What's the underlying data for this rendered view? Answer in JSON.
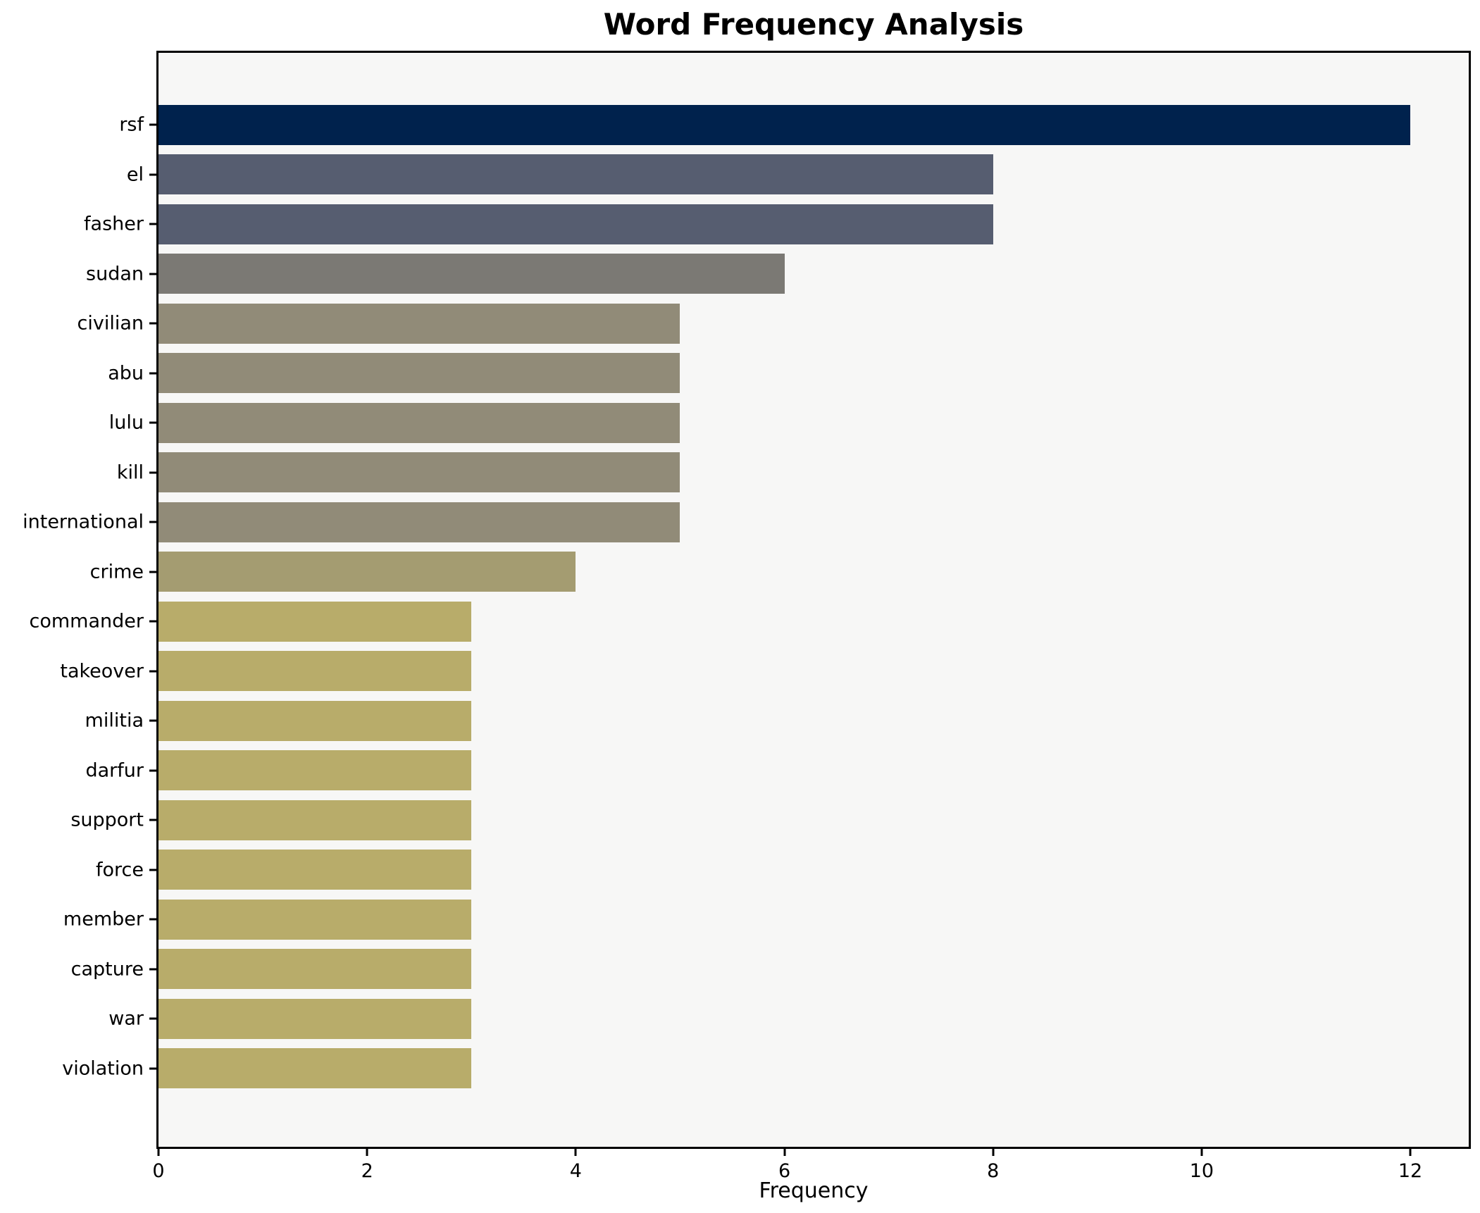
{
  "chart_data": {
    "type": "bar",
    "orientation": "horizontal",
    "title": "Word Frequency Analysis",
    "xlabel": "Frequency",
    "ylabel": "",
    "categories": [
      "rsf",
      "el",
      "fasher",
      "sudan",
      "civilian",
      "abu",
      "lulu",
      "kill",
      "international",
      "crime",
      "commander",
      "takeover",
      "militia",
      "darfur",
      "support",
      "force",
      "member",
      "capture",
      "war",
      "violation"
    ],
    "values": [
      12,
      8,
      8,
      6,
      5,
      5,
      5,
      5,
      5,
      4,
      3,
      3,
      3,
      3,
      3,
      3,
      3,
      3,
      3,
      3
    ],
    "bar_colors": [
      "#00224d",
      "#565d70",
      "#565d70",
      "#7b7974",
      "#918b78",
      "#918b78",
      "#918b78",
      "#918b78",
      "#918b78",
      "#a49c71",
      "#b8ac6a",
      "#b8ac6a",
      "#b8ac6a",
      "#b8ac6a",
      "#b8ac6a",
      "#b8ac6a",
      "#b8ac6a",
      "#b8ac6a",
      "#b8ac6a",
      "#b8ac6a"
    ],
    "xticks": [
      0,
      2,
      4,
      6,
      8,
      10,
      12
    ],
    "xlim": [
      0,
      12.56
    ],
    "grid": false,
    "legend": "none",
    "plot_background": "#f7f7f6",
    "figure_background": "#ffffff",
    "spine_color": "#000000",
    "text_color": "#000000"
  }
}
